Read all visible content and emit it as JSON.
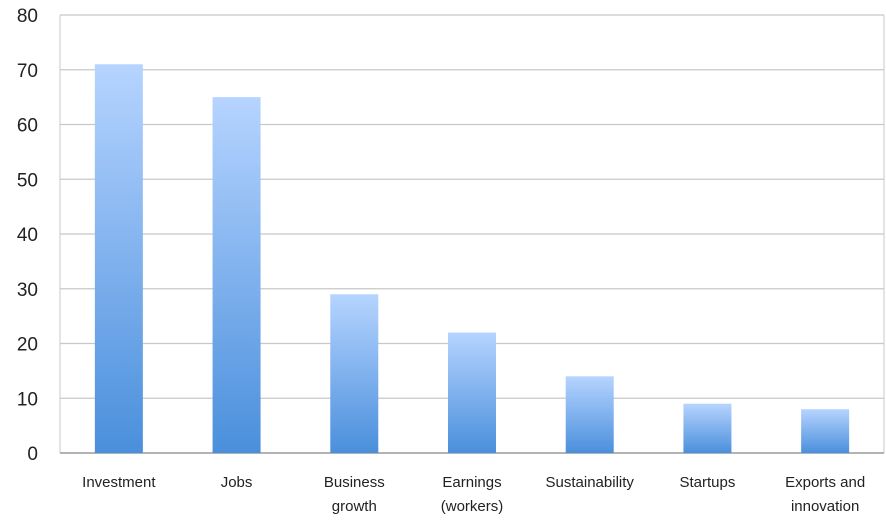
{
  "chart_data": {
    "type": "bar",
    "title": "",
    "xlabel": "",
    "ylabel": "",
    "categories": [
      [
        "Investment"
      ],
      [
        "Jobs"
      ],
      [
        "Business",
        "growth"
      ],
      [
        "Earnings",
        "(workers)"
      ],
      [
        "Sustainability"
      ],
      [
        "Startups"
      ],
      [
        "Exports and",
        "innovation"
      ]
    ],
    "values": [
      71,
      65,
      29,
      22,
      14,
      9,
      8
    ],
    "ylim": [
      0,
      80
    ],
    "yticks": [
      0,
      10,
      20,
      30,
      40,
      50,
      60,
      70,
      80
    ],
    "grid": true,
    "legend": "none",
    "colors": {
      "bar_top": "#b6d4ff",
      "bar_bottom": "#4a8fdc",
      "grid": "#c8c8c8",
      "axis": "#9a9a9a",
      "text": "#222222"
    }
  }
}
